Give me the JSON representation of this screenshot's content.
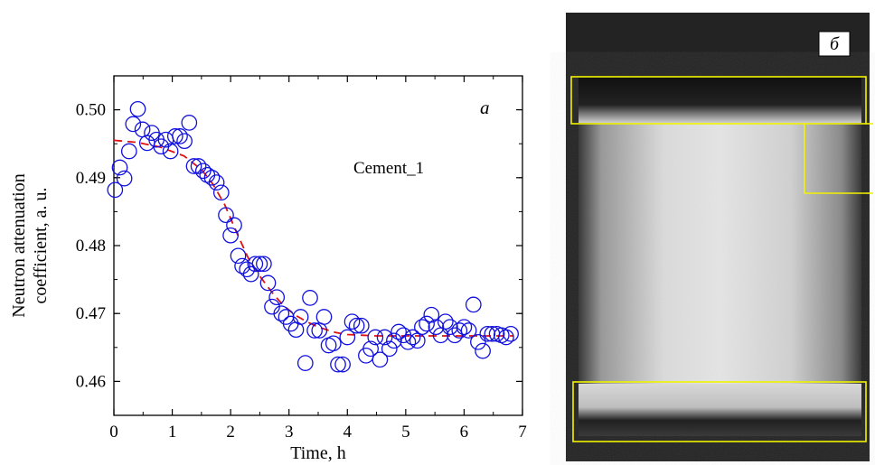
{
  "colors": {
    "marker": "#1010e0",
    "fit_line": "#e01010",
    "roi_box": "#f2f200",
    "background": "#ffffff"
  },
  "chart_data": {
    "type": "scatter",
    "panel_label": "a",
    "annotation": "Cement_1",
    "xlabel": "Time, h",
    "ylabel": [
      "Neutron attenuation",
      "coefficient, a. u."
    ],
    "xlim": [
      0,
      7
    ],
    "ylim": [
      0.455,
      0.505
    ],
    "xticks": [
      0,
      1,
      2,
      3,
      4,
      5,
      6,
      7
    ],
    "xtick_labels": [
      "0",
      "1",
      "2",
      "3",
      "4",
      "5",
      "6",
      "7"
    ],
    "yticks": [
      0.46,
      0.47,
      0.48,
      0.49,
      0.5
    ],
    "ytick_labels": [
      "0.46",
      "0.47",
      "0.48",
      "0.49",
      "0.50"
    ],
    "grid": false,
    "series": [
      {
        "marker": "open-circle",
        "x": [
          0.02,
          0.1,
          0.18,
          0.26,
          0.33,
          0.41,
          0.49,
          0.57,
          0.65,
          0.73,
          0.81,
          0.89,
          0.97,
          1.05,
          1.13,
          1.21,
          1.29,
          1.37,
          1.45,
          1.53,
          1.6,
          1.68,
          1.76,
          1.84,
          1.92,
          2.0,
          2.06,
          2.13,
          2.2,
          2.28,
          2.35,
          2.42,
          2.5,
          2.57,
          2.64,
          2.71,
          2.79,
          2.87,
          2.95,
          3.03,
          3.12,
          3.2,
          3.28,
          3.36,
          3.44,
          3.52,
          3.6,
          3.68,
          3.76,
          3.84,
          3.92,
          4.0,
          4.08,
          4.16,
          4.24,
          4.32,
          4.4,
          4.48,
          4.56,
          4.64,
          4.72,
          4.8,
          4.88,
          4.96,
          5.04,
          5.12,
          5.2,
          5.28,
          5.36,
          5.44,
          5.52,
          5.6,
          5.68,
          5.76,
          5.84,
          5.92,
          6.0,
          6.08,
          6.16,
          6.24,
          6.32,
          6.4,
          6.48,
          6.56,
          6.64,
          6.72,
          6.8
        ],
        "y": [
          0.4882,
          0.4915,
          0.4899,
          0.4939,
          0.4979,
          0.5001,
          0.4971,
          0.4951,
          0.4966,
          0.4956,
          0.4946,
          0.4956,
          0.4939,
          0.4961,
          0.4961,
          0.4954,
          0.4981,
          0.4917,
          0.4917,
          0.491,
          0.4904,
          0.49,
          0.4893,
          0.4878,
          0.4845,
          0.4815,
          0.483,
          0.4785,
          0.477,
          0.4765,
          0.4758,
          0.4773,
          0.4773,
          0.4773,
          0.4745,
          0.471,
          0.4724,
          0.47,
          0.4695,
          0.4685,
          0.4676,
          0.4695,
          0.4627,
          0.4723,
          0.4675,
          0.4675,
          0.4695,
          0.4653,
          0.4656,
          0.4625,
          0.4625,
          0.4665,
          0.4688,
          0.4682,
          0.4682,
          0.4638,
          0.4648,
          0.4665,
          0.4632,
          0.4665,
          0.4648,
          0.466,
          0.4673,
          0.4668,
          0.4658,
          0.4665,
          0.466,
          0.468,
          0.4685,
          0.4698,
          0.468,
          0.4668,
          0.4688,
          0.468,
          0.4668,
          0.4675,
          0.468,
          0.4675,
          0.4713,
          0.4658,
          0.4645,
          0.467,
          0.467,
          0.467,
          0.4668,
          0.4665,
          0.467
        ]
      },
      {
        "line": "dashed",
        "x": [
          0.0,
          0.4,
          0.8,
          1.2,
          1.5,
          1.7,
          1.9,
          2.1,
          2.3,
          2.5,
          2.7,
          2.9,
          3.1,
          3.3,
          3.5,
          3.8,
          4.0,
          4.5,
          5.0,
          5.5,
          6.0,
          6.5,
          6.85
        ],
        "y": [
          0.4955,
          0.4952,
          0.4945,
          0.4932,
          0.4912,
          0.489,
          0.486,
          0.482,
          0.4782,
          0.4755,
          0.4732,
          0.4712,
          0.4698,
          0.4688,
          0.468,
          0.4672,
          0.4669,
          0.4667,
          0.4667,
          0.4667,
          0.4667,
          0.4667,
          0.4667
        ]
      }
    ]
  },
  "image_panel": {
    "panel_label": "б",
    "description_regions": [
      "top",
      "middle",
      "bottom"
    ]
  }
}
